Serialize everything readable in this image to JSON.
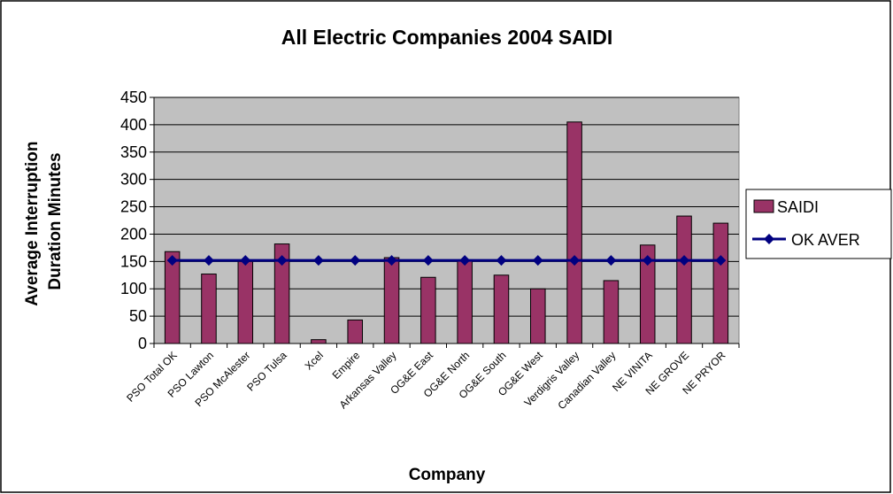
{
  "chart_data": {
    "type": "bar",
    "title": "All Electric Companies 2004 SAIDI",
    "xlabel": "Company",
    "ylabel": "Average Interruption Duration Minutes",
    "ylim": [
      0,
      450
    ],
    "yticks": [
      0,
      50,
      100,
      150,
      200,
      250,
      300,
      350,
      400,
      450
    ],
    "grid": true,
    "legend_position": "right",
    "categories": [
      "PSO Total OK",
      "PSO Lawton",
      "PSO McAlester",
      "PSO Tulsa",
      "Xcel",
      "Empire",
      "Arkansas Valley",
      "OG&E East",
      "OG&E North",
      "OG&E South",
      "OG&E West",
      "Verdigris Valley",
      "Canadian Valley",
      "NE VINITA",
      "NE GROVE",
      "NE PRYOR"
    ],
    "series": [
      {
        "name": "SAIDI",
        "type": "bar",
        "color": "#993366",
        "values": [
          168,
          127,
          150,
          182,
          7,
          43,
          157,
          121,
          153,
          125,
          100,
          405,
          115,
          180,
          233,
          220
        ]
      },
      {
        "name": "OK AVER",
        "type": "line",
        "color": "#000080",
        "values": [
          152,
          152,
          152,
          152,
          152,
          152,
          152,
          152,
          152,
          152,
          152,
          152,
          152,
          152,
          152,
          152
        ]
      }
    ]
  }
}
